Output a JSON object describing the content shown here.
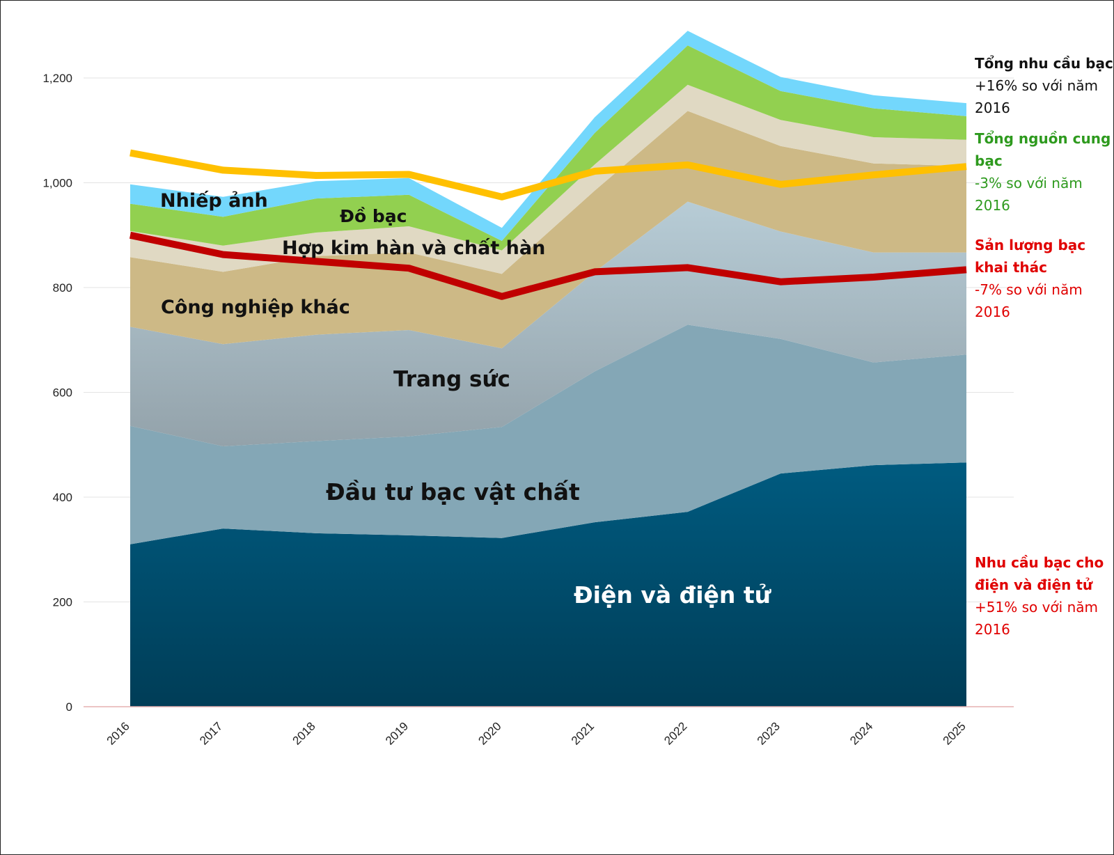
{
  "chart_data": {
    "type": "area",
    "stacked": true,
    "categories": [
      "2016",
      "2017",
      "2018",
      "2019",
      "2020",
      "2021",
      "2022",
      "2023",
      "2024",
      "2025"
    ],
    "ylim": [
      0,
      1300
    ],
    "yticks": [
      0,
      200,
      400,
      600,
      800,
      1000,
      1200
    ],
    "ytick_labels": [
      "0",
      "200",
      "400",
      "600",
      "800",
      "1,000",
      "1,200"
    ],
    "grid": true,
    "series": [
      {
        "name": "Điện và điện tử",
        "color": "#00567A",
        "values": [
          310,
          340,
          331,
          327,
          322,
          352,
          372,
          445,
          461,
          466
        ]
      },
      {
        "name": "Đầu tư bạc vật chất",
        "color": "#84A7B6",
        "values": [
          226,
          157,
          176,
          189,
          212,
          288,
          357,
          257,
          196,
          206
        ]
      },
      {
        "name": "Trang sức",
        "color": "#A8BDC8",
        "values": [
          189,
          195,
          203,
          203,
          150,
          190,
          235,
          205,
          210,
          195
        ]
      },
      {
        "name": "Công nghiệp khác",
        "color": "#CDB986",
        "values": [
          133,
          138,
          150,
          148,
          142,
          155,
          173,
          163,
          170,
          165
        ]
      },
      {
        "name": "Hợp kim hàn và chất hàn",
        "color": "#E0D9C3",
        "values": [
          50,
          50,
          45,
          50,
          45,
          50,
          50,
          50,
          50,
          50
        ]
      },
      {
        "name": "Đồ bạc",
        "color": "#92D050",
        "values": [
          52,
          55,
          65,
          60,
          18,
          60,
          75,
          55,
          55,
          45
        ]
      },
      {
        "name": "Nhiếp ảnh",
        "color": "#73D7FC",
        "values": [
          37,
          38,
          33,
          32,
          25,
          30,
          28,
          27,
          25,
          25
        ]
      }
    ],
    "lines": [
      {
        "name": "Tổng nguồn cung bạc",
        "color": "#FFC000",
        "values": [
          1057,
          1024,
          1014,
          1016,
          973,
          1022,
          1034,
          997,
          1015,
          1031
        ]
      },
      {
        "name": "Sản lượng bạc khai thác",
        "color": "#C00000",
        "values": [
          900,
          863,
          850,
          837,
          783,
          830,
          838,
          811,
          820,
          834
        ]
      }
    ],
    "area_labels": [
      "Nhiếp ảnh",
      "Đồ bạc",
      "Hợp kim hàn và chất hàn",
      "Công nghiệp khác",
      "Trang sức",
      "Đầu tư bạc vật chất",
      "Điện và điện tử"
    ],
    "annotations": [
      {
        "bold": "Tổng nhu cầu bạc",
        "text": "+16% so với năm 2016",
        "color": "#111111"
      },
      {
        "bold": "Tổng nguồn cung bạc",
        "text": "-3% so với năm 2016",
        "color": "#2E9A1E"
      },
      {
        "bold": "Sản lượng bạc khai thác",
        "text": "-7% so với năm 2016",
        "color": "#E00000"
      },
      {
        "bold": "Nhu cầu bạc cho điện và điện tử",
        "text": "+51% so với năm 2016",
        "color": "#E00000"
      }
    ]
  }
}
